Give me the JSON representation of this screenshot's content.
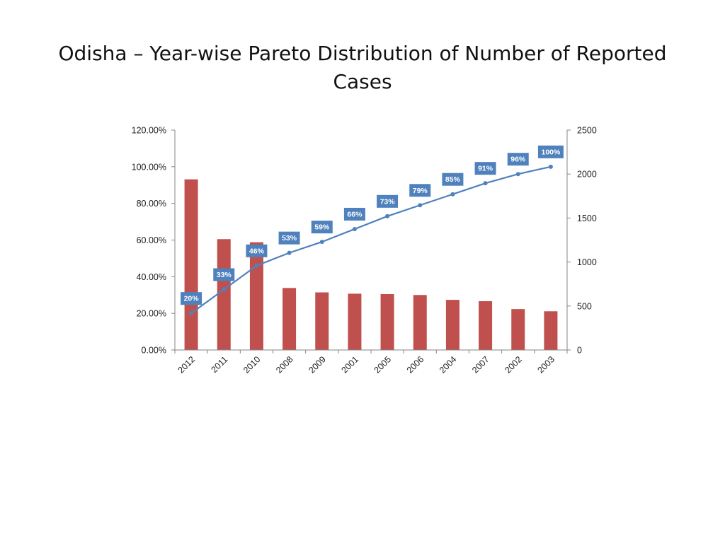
{
  "slide": {
    "title": "Odisha – Year-wise Pareto Distribution of Number of Reported Cases"
  },
  "chart_data": {
    "type": "bar",
    "categories": [
      "2012",
      "2011",
      "2010",
      "2008",
      "2009",
      "2001",
      "2005",
      "2006",
      "2004",
      "2007",
      "2002",
      "2003"
    ],
    "series": [
      {
        "type": "bar",
        "axis": "right",
        "color": "#C0504D",
        "values": [
          1940,
          1260,
          1225,
          705,
          655,
          640,
          635,
          625,
          570,
          555,
          465,
          440
        ]
      },
      {
        "type": "line",
        "axis": "left",
        "color": "#4F81BD",
        "values": [
          0.2,
          0.33,
          0.46,
          0.53,
          0.59,
          0.66,
          0.73,
          0.79,
          0.85,
          0.91,
          0.96,
          1.0
        ],
        "labels": [
          "20%",
          "33%",
          "46%",
          "53%",
          "59%",
          "66%",
          "73%",
          "79%",
          "85%",
          "91%",
          "96%",
          "100%"
        ]
      }
    ],
    "left_axis": {
      "ylim": [
        0,
        1.2
      ],
      "ticks": [
        0,
        0.2,
        0.4,
        0.6,
        0.8,
        1.0,
        1.2
      ],
      "tick_labels": [
        "0.00%",
        "20.00%",
        "40.00%",
        "60.00%",
        "80.00%",
        "100.00%",
        "120.00%"
      ]
    },
    "right_axis": {
      "ylim": [
        0,
        2500
      ],
      "ticks": [
        0,
        500,
        1000,
        1500,
        2000,
        2500
      ],
      "tick_labels": [
        "0",
        "500",
        "1000",
        "1500",
        "2000",
        "2500"
      ]
    },
    "grid": false,
    "legend": false
  }
}
